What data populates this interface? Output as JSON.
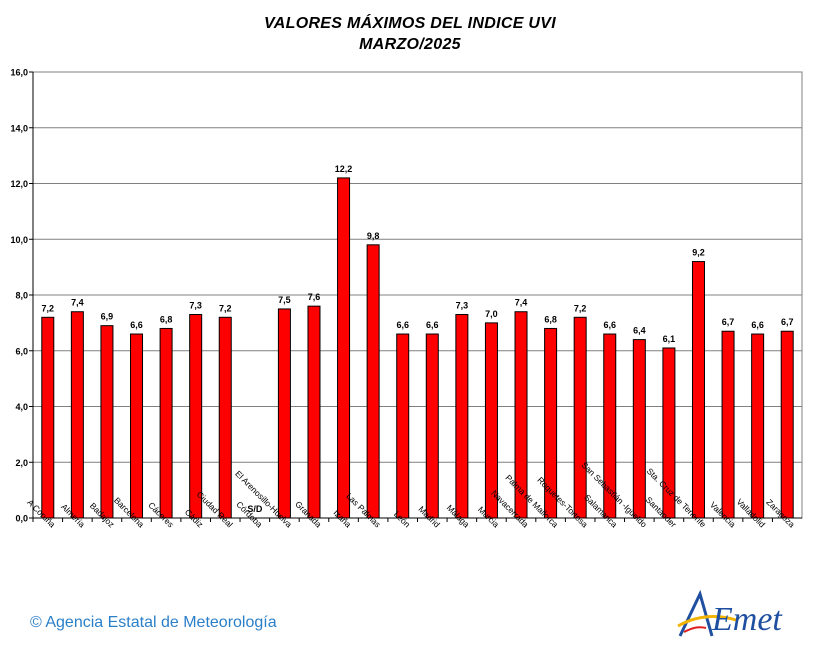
{
  "chart_data": {
    "type": "bar",
    "title": "VALORES MÁXIMOS DEL INDICE  UVI",
    "subtitle": "MARZO/2025",
    "xlabel": "",
    "ylabel": "",
    "ylim": [
      0,
      16
    ],
    "yticks": [
      "0,0",
      "2,0",
      "4,0",
      "6,0",
      "8,0",
      "10,0",
      "12,0",
      "14,0",
      "16,0"
    ],
    "grid": true,
    "bar_color": "#ff0000",
    "categories": [
      "A Coruña",
      "Almería",
      "Badajoz",
      "Barcelona",
      "Cáceres",
      "Cádiz",
      "Ciudad Real",
      "Córdoba",
      "El Arenosillo-Huelva",
      "Granada",
      "Izaña",
      "Las Palmas",
      "León",
      "Madrid",
      "Málaga",
      "Murcia",
      "Navacerrada",
      "Palma de Mallorca",
      "Roquetes-Tortosa",
      "Salamanca",
      "San Sebastián -Igueldo",
      "Santander",
      "Sta. Cruz de Tenerife",
      "Valencia",
      "Valladolid",
      "Zaragoza"
    ],
    "values": [
      7.2,
      7.4,
      6.9,
      6.6,
      6.8,
      7.3,
      7.2,
      null,
      7.5,
      7.6,
      12.2,
      9.8,
      6.6,
      6.6,
      7.3,
      7.0,
      7.4,
      6.8,
      7.2,
      6.6,
      6.4,
      6.1,
      9.2,
      6.7,
      6.6,
      6.7
    ],
    "labels": [
      "7,2",
      "7,4",
      "6,9",
      "6,6",
      "6,8",
      "7,3",
      "7,2",
      "S/D",
      "7,5",
      "7,6",
      "12,2",
      "9,8",
      "6,6",
      "6,6",
      "7,3",
      "7,0",
      "7,4",
      "6,8",
      "7,2",
      "6,6",
      "6,4",
      "6,1",
      "9,2",
      "6,7",
      "6,6",
      "6,7"
    ]
  },
  "footer": {
    "credit": "© Agencia Estatal de Meteorología",
    "logo_text": "AEmet"
  }
}
